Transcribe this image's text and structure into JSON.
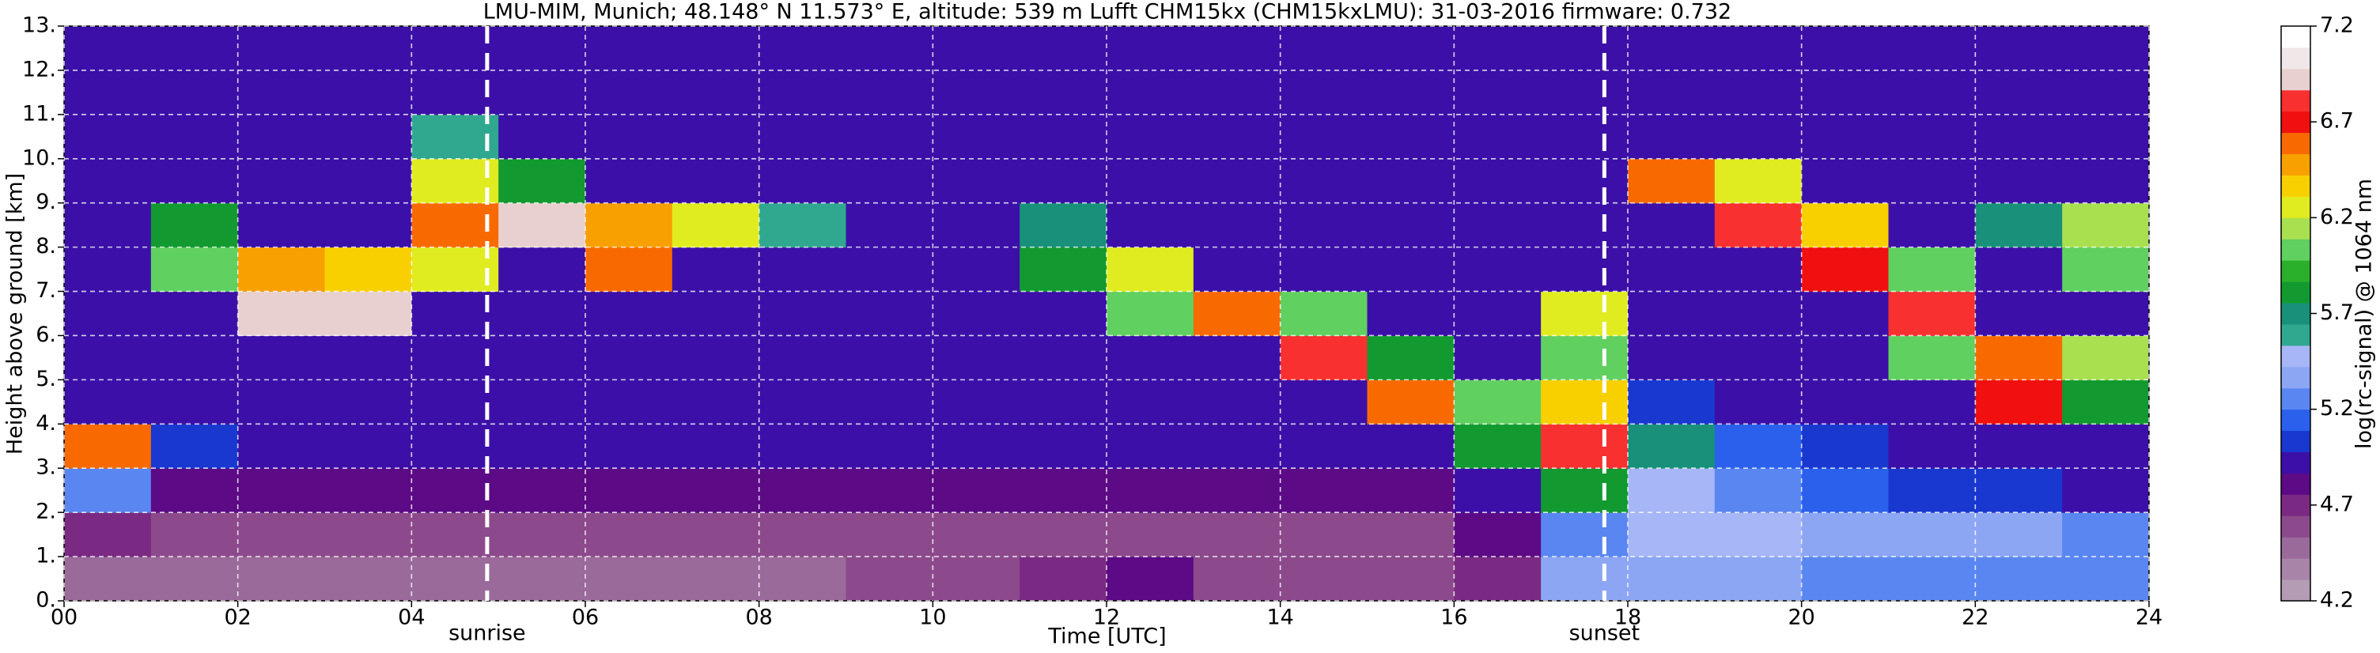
{
  "chart_data": {
    "type": "heatmap",
    "title": "LMU-MIM, Munich; 48.148° N 11.573° E, altitude: 539 m    Lufft CHM15kx (CHM15kxLMU): 31-03-2016    firmware: 0.732",
    "xlabel": "Time [UTC]",
    "ylabel": "Height above ground [km]",
    "xlim": [
      0,
      24
    ],
    "ylim": [
      0,
      13
    ],
    "xticks": [
      {
        "value": 0,
        "label": "00"
      },
      {
        "value": 2,
        "label": "02"
      },
      {
        "value": 4,
        "label": "04"
      },
      {
        "value": 6,
        "label": "06"
      },
      {
        "value": 8,
        "label": "08"
      },
      {
        "value": 10,
        "label": "10"
      },
      {
        "value": 12,
        "label": "12"
      },
      {
        "value": 14,
        "label": "14"
      },
      {
        "value": 16,
        "label": "16"
      },
      {
        "value": 18,
        "label": "18"
      },
      {
        "value": 20,
        "label": "20"
      },
      {
        "value": 22,
        "label": "22"
      },
      {
        "value": 24,
        "label": "24"
      }
    ],
    "yticks": [
      {
        "value": 0,
        "label": "0."
      },
      {
        "value": 1,
        "label": "1."
      },
      {
        "value": 2,
        "label": "2."
      },
      {
        "value": 3,
        "label": "3."
      },
      {
        "value": 4,
        "label": "4."
      },
      {
        "value": 5,
        "label": "5."
      },
      {
        "value": 6,
        "label": "6."
      },
      {
        "value": 7,
        "label": "7."
      },
      {
        "value": 8,
        "label": "8."
      },
      {
        "value": 9,
        "label": "9."
      },
      {
        "value": 10,
        "label": "10."
      },
      {
        "value": 11,
        "label": "11."
      },
      {
        "value": 12,
        "label": "12."
      },
      {
        "value": 13,
        "label": "13."
      }
    ],
    "grid": true,
    "annotations": [
      {
        "text": "sunrise",
        "x": 4.87
      },
      {
        "text": "sunset",
        "x": 17.73
      }
    ],
    "x": [
      0.5,
      1.5,
      2.5,
      3.5,
      4.5,
      5.5,
      6.5,
      7.5,
      8.5,
      9.5,
      10.5,
      11.5,
      12.5,
      13.5,
      14.5,
      15.5,
      16.5,
      17.5,
      18.5,
      19.5,
      20.5,
      21.5,
      22.5,
      23.5
    ],
    "y": [
      0.5,
      1.5,
      2.5,
      3.5,
      4.5,
      5.5,
      6.5,
      7.5,
      8.5,
      9.5,
      10.5,
      11.5,
      12.5
    ],
    "z": [
      [
        4.5,
        4.5,
        4.5,
        4.5,
        4.5,
        4.5,
        4.5,
        4.5,
        4.5,
        4.6,
        4.6,
        4.7,
        4.8,
        4.6,
        4.6,
        4.6,
        4.7,
        5.4,
        5.4,
        5.4,
        5.3,
        5.3,
        5.3,
        5.3
      ],
      [
        4.7,
        4.6,
        4.6,
        4.6,
        4.6,
        4.6,
        4.6,
        4.6,
        4.6,
        4.6,
        4.6,
        4.6,
        4.6,
        4.6,
        4.6,
        4.6,
        4.8,
        5.3,
        5.5,
        5.5,
        5.4,
        5.4,
        5.4,
        5.3
      ],
      [
        5.2,
        4.8,
        4.8,
        4.8,
        4.8,
        4.8,
        4.8,
        4.8,
        4.8,
        4.8,
        4.8,
        4.8,
        4.8,
        4.8,
        4.8,
        4.8,
        4.9,
        5.8,
        5.5,
        5.3,
        5.1,
        5.0,
        5.0,
        4.9
      ],
      [
        6.6,
        5.0,
        4.9,
        4.9,
        4.9,
        4.9,
        4.9,
        4.9,
        4.9,
        4.9,
        4.9,
        4.9,
        4.9,
        4.9,
        4.9,
        4.9,
        5.8,
        6.8,
        5.7,
        5.1,
        5.0,
        4.9,
        4.9,
        4.9
      ],
      [
        4.9,
        4.9,
        4.9,
        4.9,
        4.9,
        4.9,
        4.9,
        4.9,
        4.9,
        4.9,
        4.9,
        4.9,
        4.9,
        4.9,
        4.9,
        6.6,
        6.0,
        6.4,
        5.0,
        4.9,
        4.9,
        4.9,
        6.7,
        5.8
      ],
      [
        4.9,
        4.9,
        4.9,
        4.9,
        4.9,
        4.9,
        4.9,
        4.9,
        4.9,
        4.9,
        4.9,
        4.9,
        4.9,
        4.9,
        6.8,
        5.8,
        4.9,
        6.0,
        4.9,
        4.9,
        4.9,
        6.0,
        6.6,
        6.1
      ],
      [
        4.9,
        4.9,
        6.9,
        6.9,
        4.9,
        4.9,
        4.9,
        4.9,
        4.9,
        4.9,
        4.9,
        4.9,
        6.0,
        6.6,
        6.0,
        4.9,
        4.9,
        6.2,
        4.9,
        4.9,
        4.9,
        6.8,
        4.9,
        4.9
      ],
      [
        4.9,
        6.0,
        6.5,
        6.4,
        6.2,
        4.9,
        6.6,
        4.9,
        4.9,
        4.9,
        4.9,
        5.8,
        6.3,
        4.9,
        4.9,
        4.9,
        4.9,
        4.9,
        4.9,
        4.9,
        6.7,
        6.0,
        4.9,
        6.0
      ],
      [
        4.9,
        5.8,
        4.9,
        4.9,
        6.6,
        6.9,
        6.5,
        6.2,
        5.6,
        4.9,
        4.9,
        5.7,
        4.9,
        4.9,
        4.9,
        4.9,
        4.9,
        4.9,
        4.9,
        6.8,
        6.4,
        4.9,
        5.7,
        6.1
      ],
      [
        4.9,
        4.9,
        4.9,
        4.9,
        6.3,
        5.8,
        4.9,
        4.9,
        4.9,
        4.9,
        4.9,
        4.9,
        4.9,
        4.9,
        4.9,
        4.9,
        4.9,
        4.9,
        6.6,
        6.3,
        4.9,
        4.9,
        4.9,
        4.9
      ],
      [
        4.9,
        4.9,
        4.9,
        4.9,
        5.6,
        4.9,
        4.9,
        4.9,
        4.9,
        4.9,
        4.9,
        4.9,
        4.9,
        4.9,
        4.9,
        4.9,
        4.9,
        4.9,
        4.9,
        4.9,
        4.9,
        4.9,
        4.9,
        4.9
      ],
      [
        4.9,
        4.9,
        4.9,
        4.9,
        4.9,
        4.9,
        4.9,
        4.9,
        4.9,
        4.9,
        4.9,
        4.9,
        4.9,
        4.9,
        4.9,
        4.9,
        4.9,
        4.9,
        4.9,
        4.9,
        4.9,
        4.9,
        4.9,
        4.9
      ],
      [
        4.9,
        4.9,
        4.9,
        4.9,
        4.9,
        4.9,
        4.9,
        4.9,
        4.9,
        4.9,
        4.9,
        4.9,
        4.9,
        4.9,
        4.9,
        4.9,
        4.9,
        4.9,
        4.9,
        4.9,
        4.9,
        4.9,
        4.9,
        4.9
      ]
    ],
    "colorbar": {
      "label": "log(rc-signal) @ 1064 nm",
      "range": [
        4.2,
        7.2
      ],
      "ticks": [
        4.2,
        4.7,
        5.2,
        5.7,
        6.2,
        6.7,
        7.2
      ],
      "colors": [
        "#b49cb4",
        "#a884a8",
        "#9a6a9a",
        "#8c4a8c",
        "#7a2a82",
        "#5c0a86",
        "#3c10a8",
        "#1838d0",
        "#2a60ec",
        "#5a86f2",
        "#8ca6f4",
        "#a6b6f6",
        "#30a890",
        "#18907a",
        "#129a30",
        "#2ab02a",
        "#60d060",
        "#a8e050",
        "#e0ec20",
        "#f8d000",
        "#f8a000",
        "#f86a00",
        "#f01010",
        "#f83030",
        "#e8d0d0",
        "#f0e8e8",
        "#ffffff"
      ]
    }
  }
}
